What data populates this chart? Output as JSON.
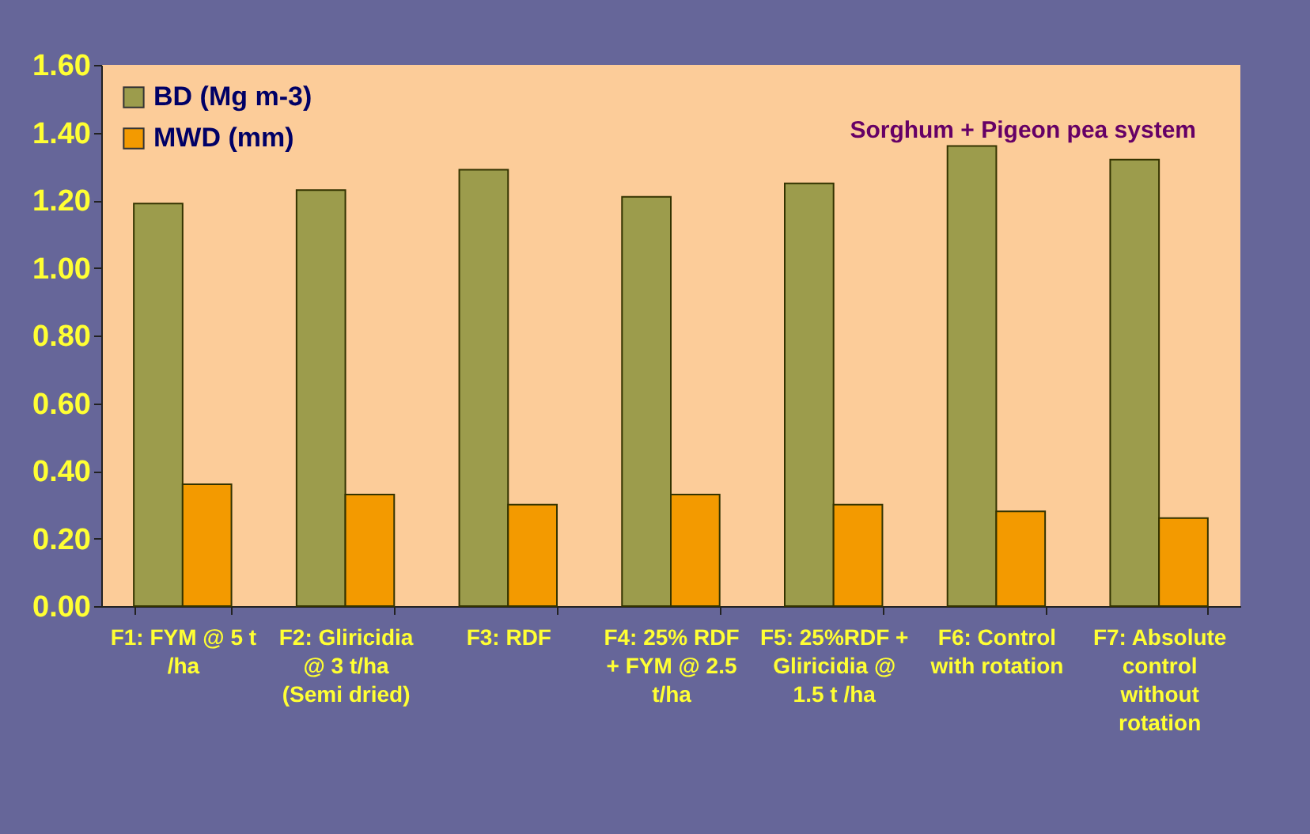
{
  "chart_data": {
    "type": "bar",
    "title": "Sorghum + Pigeon pea system",
    "categories": [
      "F1: FYM @ 5 t /ha",
      "F2: Gliricidia @ 3 t/ha (Semi dried)",
      "F3: RDF",
      "F4: 25% RDF + FYM @ 2.5 t/ha",
      "F5: 25%RDF + Gliricidia @ 1.5 t /ha",
      "F6: Control with rotation",
      "F7: Absolute control without rotation"
    ],
    "series": [
      {
        "name": "BD (Mg m-3)",
        "color": "#9c9c4c",
        "values": [
          1.19,
          1.23,
          1.29,
          1.21,
          1.25,
          1.36,
          1.32
        ]
      },
      {
        "name": "MWD (mm)",
        "color": "#f39a00",
        "values": [
          0.36,
          0.33,
          0.3,
          0.33,
          0.3,
          0.28,
          0.26
        ]
      }
    ],
    "ylim": [
      0,
      1.6
    ],
    "yticks": [
      {
        "value": 0,
        "label": "0.00"
      },
      {
        "value": 0.2,
        "label": "0.20"
      },
      {
        "value": 0.4,
        "label": "0.40"
      },
      {
        "value": 0.6,
        "label": "0.60"
      },
      {
        "value": 0.8,
        "label": "0.80"
      },
      {
        "value": 1,
        "label": "1.00"
      },
      {
        "value": 1.2,
        "label": "1.20"
      },
      {
        "value": 1.4,
        "label": "1.40"
      },
      {
        "value": 1.6,
        "label": "1.60"
      }
    ],
    "grid": false,
    "legend": "top left"
  }
}
